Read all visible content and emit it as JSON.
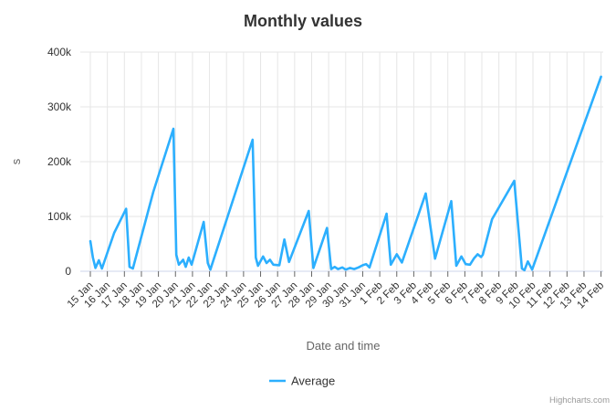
{
  "credits": "Highcharts.com",
  "colors": {
    "series": "#2caffe",
    "grid": "#e6e6e6",
    "axis_line": "#ccd6eb",
    "tick": "#666666",
    "tick_label": "#333333",
    "axis_title": "#666666",
    "title": "#333333",
    "legend_text": "#333333",
    "credits_text": "#999999",
    "background": "#ffffff"
  },
  "chart_data": {
    "type": "line",
    "title": "Monthly values",
    "xlabel": "Date and time",
    "ylabel": "s",
    "grid": true,
    "legend_position": "bottom-center",
    "ylim_thousands": [
      0,
      400
    ],
    "y_tick_labels": [
      "0",
      "100k",
      "200k",
      "300k",
      "400k"
    ],
    "x_tick_labels": [
      "15 Jan",
      "16 Jan",
      "17 Jan",
      "18 Jan",
      "19 Jan",
      "20 Jan",
      "21 Jan",
      "22 Jan",
      "23 Jan",
      "24 Jan",
      "25 Jan",
      "26 Jan",
      "27 Jan",
      "28 Jan",
      "29 Jan",
      "30 Jan",
      "31 Jan",
      "1 Feb",
      "2 Feb",
      "3 Feb",
      "4 Feb",
      "5 Feb",
      "6 Feb",
      "7 Feb",
      "8 Feb",
      "9 Feb",
      "10 Feb",
      "11 Feb",
      "12 Feb",
      "13 Feb",
      "14 Feb"
    ],
    "series": [
      {
        "name": "Average",
        "color": "#2caffe",
        "points_day_offset_vs_value_thousands": [
          [
            0,
            55
          ],
          [
            0.15,
            25
          ],
          [
            0.3,
            6
          ],
          [
            0.5,
            20
          ],
          [
            0.68,
            5
          ],
          [
            1.4,
            70
          ],
          [
            2.1,
            114
          ],
          [
            2.3,
            8
          ],
          [
            2.5,
            5
          ],
          [
            3.7,
            145
          ],
          [
            4.88,
            260
          ],
          [
            5.05,
            30
          ],
          [
            5.2,
            12
          ],
          [
            5.45,
            21
          ],
          [
            5.6,
            8
          ],
          [
            5.78,
            25
          ],
          [
            5.95,
            12
          ],
          [
            6.66,
            90
          ],
          [
            6.9,
            15
          ],
          [
            7.05,
            3
          ],
          [
            9.53,
            240
          ],
          [
            9.72,
            25
          ],
          [
            9.85,
            10
          ],
          [
            10.15,
            27
          ],
          [
            10.35,
            15
          ],
          [
            10.55,
            21
          ],
          [
            10.75,
            12
          ],
          [
            11.1,
            11
          ],
          [
            11.4,
            58
          ],
          [
            11.67,
            17
          ],
          [
            12.83,
            110
          ],
          [
            13.1,
            6
          ],
          [
            13.9,
            79
          ],
          [
            14.15,
            4
          ],
          [
            14.35,
            8
          ],
          [
            14.55,
            4
          ],
          [
            14.8,
            7
          ],
          [
            15.0,
            3
          ],
          [
            15.25,
            6
          ],
          [
            15.5,
            4
          ],
          [
            15.75,
            7
          ],
          [
            16.0,
            11
          ],
          [
            16.2,
            13
          ],
          [
            16.4,
            7
          ],
          [
            17.4,
            105
          ],
          [
            17.65,
            12
          ],
          [
            18.0,
            31
          ],
          [
            18.3,
            16
          ],
          [
            19.7,
            142
          ],
          [
            20.25,
            23
          ],
          [
            21.2,
            128
          ],
          [
            21.5,
            10
          ],
          [
            21.8,
            27
          ],
          [
            22.05,
            13
          ],
          [
            22.3,
            12
          ],
          [
            22.55,
            24
          ],
          [
            22.75,
            31
          ],
          [
            22.95,
            26
          ],
          [
            23.05,
            30
          ],
          [
            23.6,
            95
          ],
          [
            24.9,
            165
          ],
          [
            25.35,
            5
          ],
          [
            25.5,
            2
          ],
          [
            25.7,
            18
          ],
          [
            25.95,
            3
          ],
          [
            30,
            355
          ]
        ]
      }
    ]
  }
}
